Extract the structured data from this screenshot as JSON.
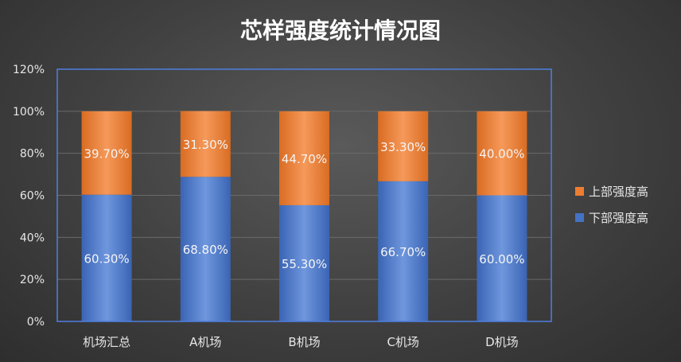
{
  "chart_data": {
    "type": "bar",
    "stacked": true,
    "title": "芯样强度统计情况图",
    "categories": [
      "机场汇总",
      "A机场",
      "B机场",
      "C机场",
      "D机场"
    ],
    "series": [
      {
        "name": "下部强度高",
        "values": [
          60.3,
          68.8,
          55.3,
          66.7,
          60.0
        ],
        "labels": [
          "60.30%",
          "68.80%",
          "55.30%",
          "66.70%",
          "60.00%"
        ],
        "color": "#4472c4"
      },
      {
        "name": "上部强度高",
        "values": [
          39.7,
          31.3,
          44.7,
          33.3,
          40.0
        ],
        "labels": [
          "39.70%",
          "31.30%",
          "44.70%",
          "33.30%",
          "40.00%"
        ],
        "color": "#ed7d31"
      }
    ],
    "ylim": [
      0,
      120
    ],
    "yticks": [
      "0%",
      "20%",
      "40%",
      "60%",
      "80%",
      "100%",
      "120%"
    ],
    "grid": true,
    "legend_position": "right"
  }
}
